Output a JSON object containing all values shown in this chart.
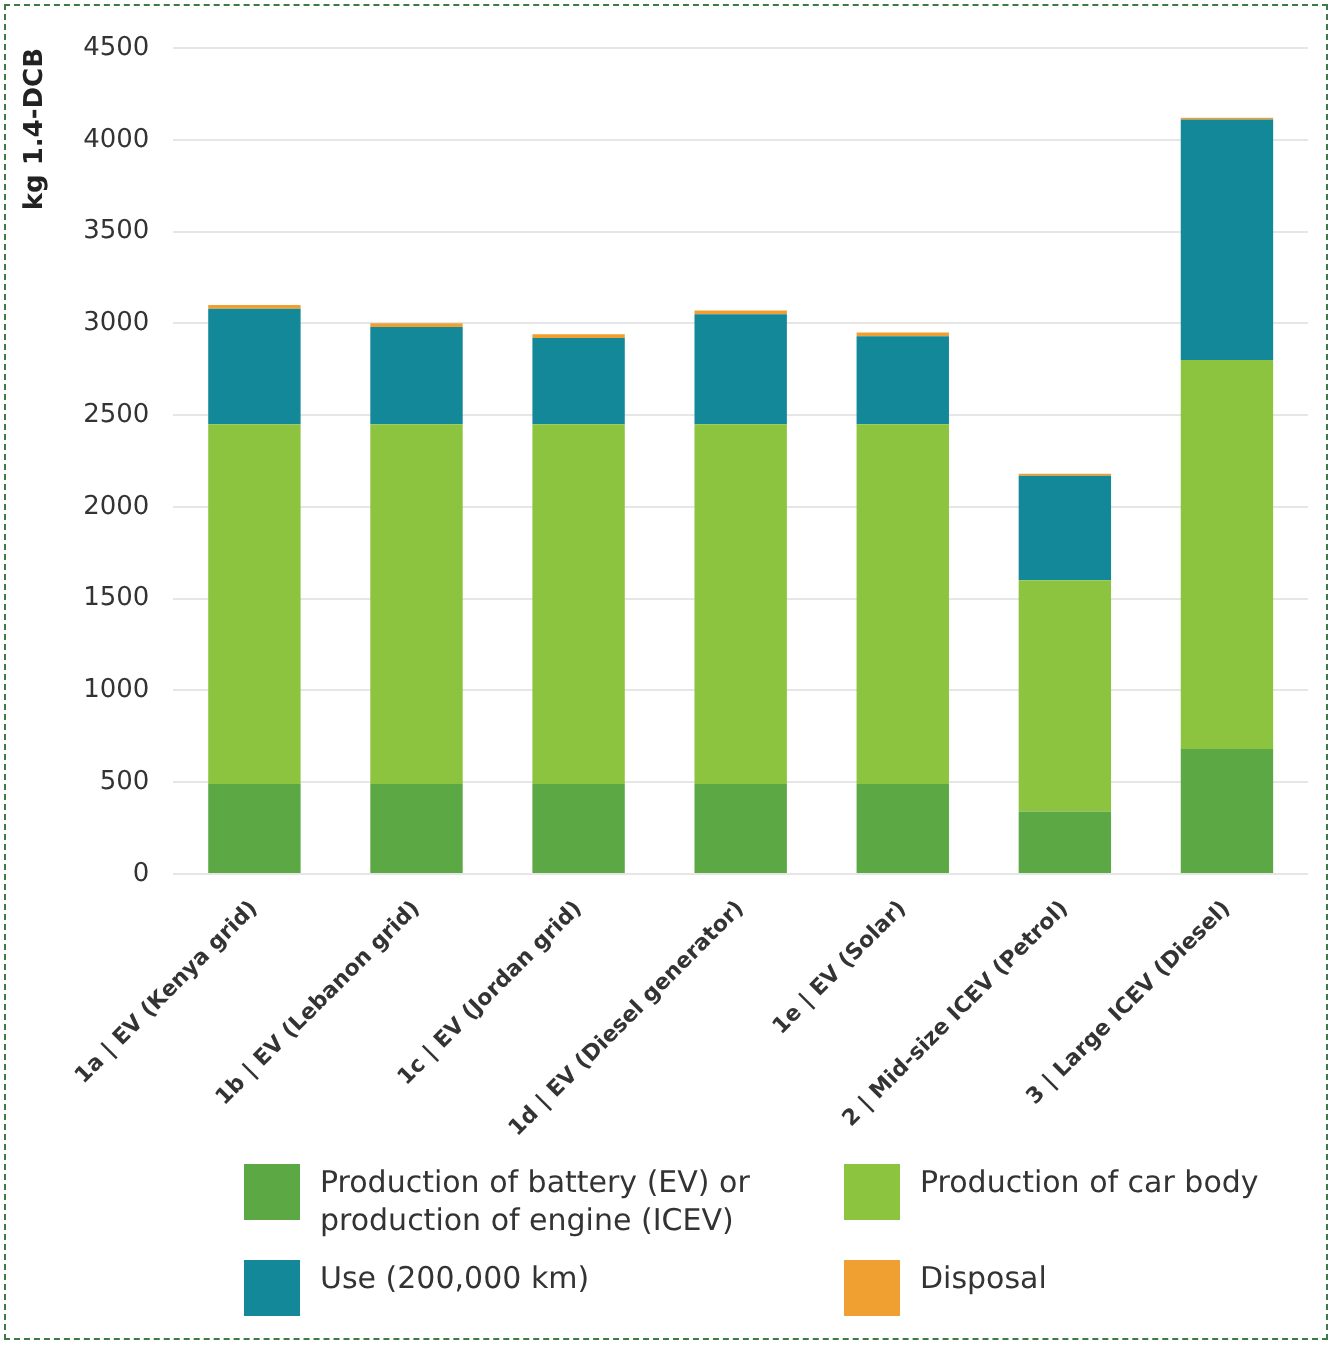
{
  "chart_data": {
    "type": "bar",
    "stacked": true,
    "ylabel": "kg 1.4-DCB",
    "categories": [
      "1a | EV (Kenya grid)",
      "1b | EV (Lebanon grid)",
      "1c | EV (Jordan grid)",
      "1d | EV (Diesel generator)",
      "1e | EV (Solar)",
      "2 | Mid-size ICEV (Petrol)",
      "3 | Large ICEV (Diesel)"
    ],
    "series": [
      {
        "name": "Production of battery (EV) or production of engine (ICEV)",
        "color": "#5ca845",
        "values": [
          490,
          490,
          490,
          490,
          490,
          340,
          680
        ]
      },
      {
        "name": "Production of car body",
        "color": "#8cc43f",
        "values": [
          1960,
          1960,
          1960,
          1960,
          1960,
          1260,
          2120
        ]
      },
      {
        "name": "Use (200,000 km)",
        "color": "#138899",
        "values": [
          630,
          530,
          470,
          600,
          480,
          570,
          1310
        ]
      },
      {
        "name": "Disposal",
        "color": "#f0a030",
        "values": [
          20,
          20,
          20,
          20,
          20,
          10,
          10
        ]
      }
    ],
    "ylim": [
      0,
      4500
    ],
    "yticks": [
      0,
      500,
      1000,
      1500,
      2000,
      2500,
      3000,
      3500,
      4000,
      4500
    ],
    "grid": "y",
    "legend": "bottom"
  }
}
